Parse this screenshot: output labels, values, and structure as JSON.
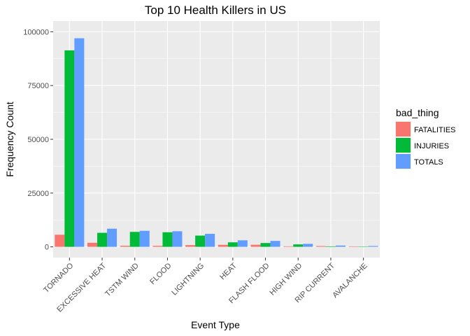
{
  "chart_data": {
    "type": "bar",
    "title": "Top 10 Health Killers in US",
    "xlabel": "Event Type",
    "ylabel": "Frequency Count",
    "legend_title": "bad_thing",
    "legend_position": "right",
    "grid": true,
    "ylim": [
      0,
      100000
    ],
    "yticks": [
      0,
      25000,
      50000,
      75000,
      100000
    ],
    "ytick_labels": [
      "0",
      "25000",
      "50000",
      "75000",
      "100000"
    ],
    "categories": [
      "TORNADO",
      "EXCESSIVE HEAT",
      "TSTM WIND",
      "FLOOD",
      "LIGHTNING",
      "HEAT",
      "FLASH FLOOD",
      "HIGH WIND",
      "RIP CURRENT",
      "AVALANCHE"
    ],
    "series": [
      {
        "name": "FATALITIES",
        "color": "#F8766D",
        "values": [
          5633,
          1903,
          504,
          470,
          816,
          937,
          978,
          248,
          368,
          224
        ]
      },
      {
        "name": "INJURIES",
        "color": "#00BA38",
        "values": [
          91346,
          6525,
          6957,
          6789,
          5230,
          2100,
          1777,
          1137,
          232,
          170
        ]
      },
      {
        "name": "TOTALS",
        "color": "#619CFF",
        "values": [
          96979,
          8428,
          7461,
          7259,
          6046,
          3037,
          2755,
          1385,
          600,
          394
        ]
      }
    ]
  }
}
